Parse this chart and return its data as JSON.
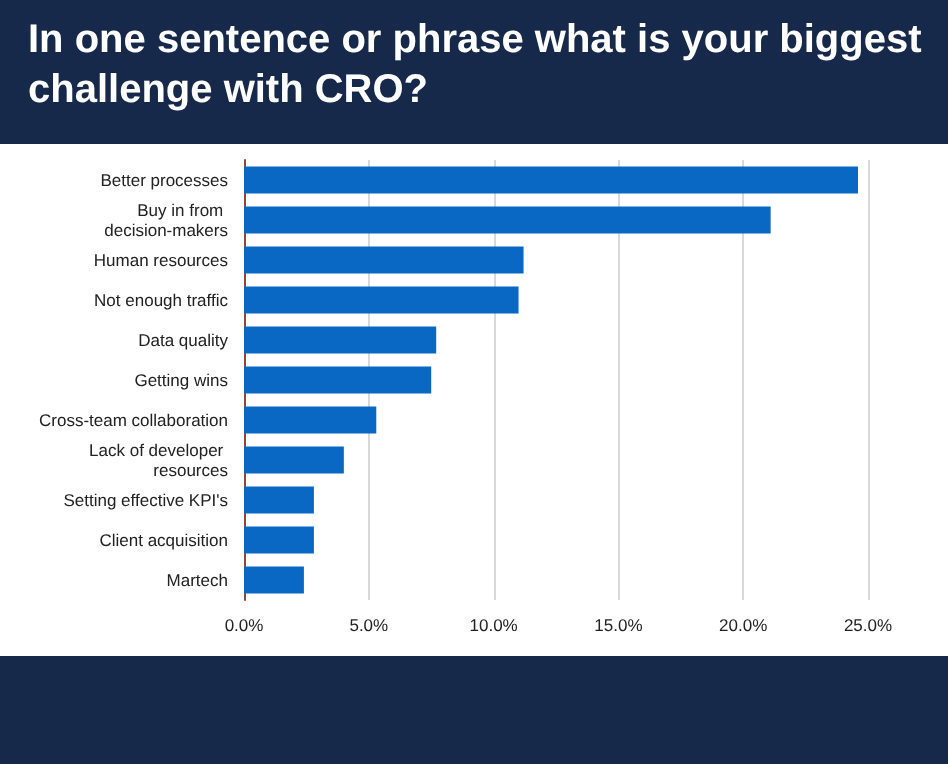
{
  "chart_data": {
    "type": "bar",
    "orientation": "horizontal",
    "title": "In one sentence or phrase what is your biggest challenge with CRO?",
    "categories": [
      "Better processes",
      "Buy in from decision-makers",
      "Human resources",
      "Not enough traffic",
      "Data quality",
      "Getting wins",
      "Cross-team collaboration",
      "Lack of developer resources",
      "Setting effective KPI's",
      "Client acquisition",
      "Martech"
    ],
    "values": [
      24.6,
      21.1,
      11.2,
      11.0,
      7.7,
      7.5,
      5.3,
      4.0,
      2.8,
      2.8,
      2.4
    ],
    "color": "#0868c4",
    "xlim": [
      0,
      25
    ],
    "xticks": [
      {
        "value": 0,
        "label": "0.0%"
      },
      {
        "value": 5,
        "label": "5.0%"
      },
      {
        "value": 10,
        "label": "10.0%"
      },
      {
        "value": 15,
        "label": "15.0%"
      },
      {
        "value": 20,
        "label": "20.0%"
      },
      {
        "value": 25,
        "label": "25.0%"
      }
    ],
    "grid": "x"
  }
}
